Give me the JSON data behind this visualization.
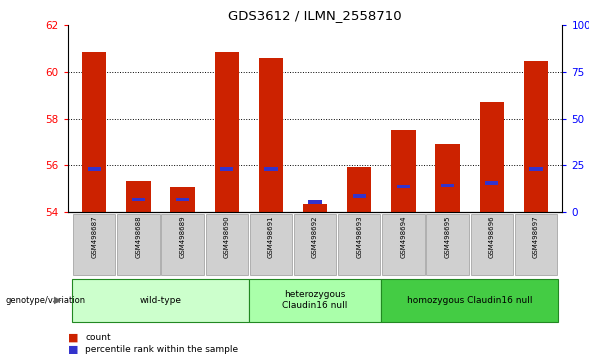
{
  "title": "GDS3612 / ILMN_2558710",
  "samples": [
    "GSM498687",
    "GSM498688",
    "GSM498689",
    "GSM498690",
    "GSM498691",
    "GSM498692",
    "GSM498693",
    "GSM498694",
    "GSM498695",
    "GSM498696",
    "GSM498697"
  ],
  "red_values": [
    60.85,
    55.35,
    55.1,
    60.85,
    60.6,
    54.35,
    55.95,
    57.5,
    56.9,
    58.7,
    60.45
  ],
  "blue_values": [
    55.85,
    54.55,
    54.55,
    55.85,
    55.85,
    54.45,
    54.7,
    55.1,
    55.15,
    55.25,
    55.85
  ],
  "y_min": 54,
  "y_max": 62,
  "y_ticks_left": [
    54,
    56,
    58,
    60,
    62
  ],
  "y_ticks_right": [
    0,
    25,
    50,
    75,
    100
  ],
  "bar_width": 0.55,
  "red_color": "#cc2200",
  "blue_color": "#3333cc",
  "groups": [
    {
      "label": "wild-type",
      "indices": [
        0,
        1,
        2,
        3
      ],
      "color": "#ccffcc"
    },
    {
      "label": "heterozygous\nClaudin16 null",
      "indices": [
        4,
        5,
        6
      ],
      "color": "#aaffaa"
    },
    {
      "label": "homozygous Claudin16 null",
      "indices": [
        7,
        8,
        9,
        10
      ],
      "color": "#44cc44"
    }
  ],
  "group_border_color": "#228822",
  "tick_bg_color": "#d0d0d0",
  "legend_items": [
    {
      "label": "count",
      "color": "#cc2200"
    },
    {
      "label": "percentile rank within the sample",
      "color": "#3333cc"
    }
  ],
  "genotype_label": "genotype/variation"
}
